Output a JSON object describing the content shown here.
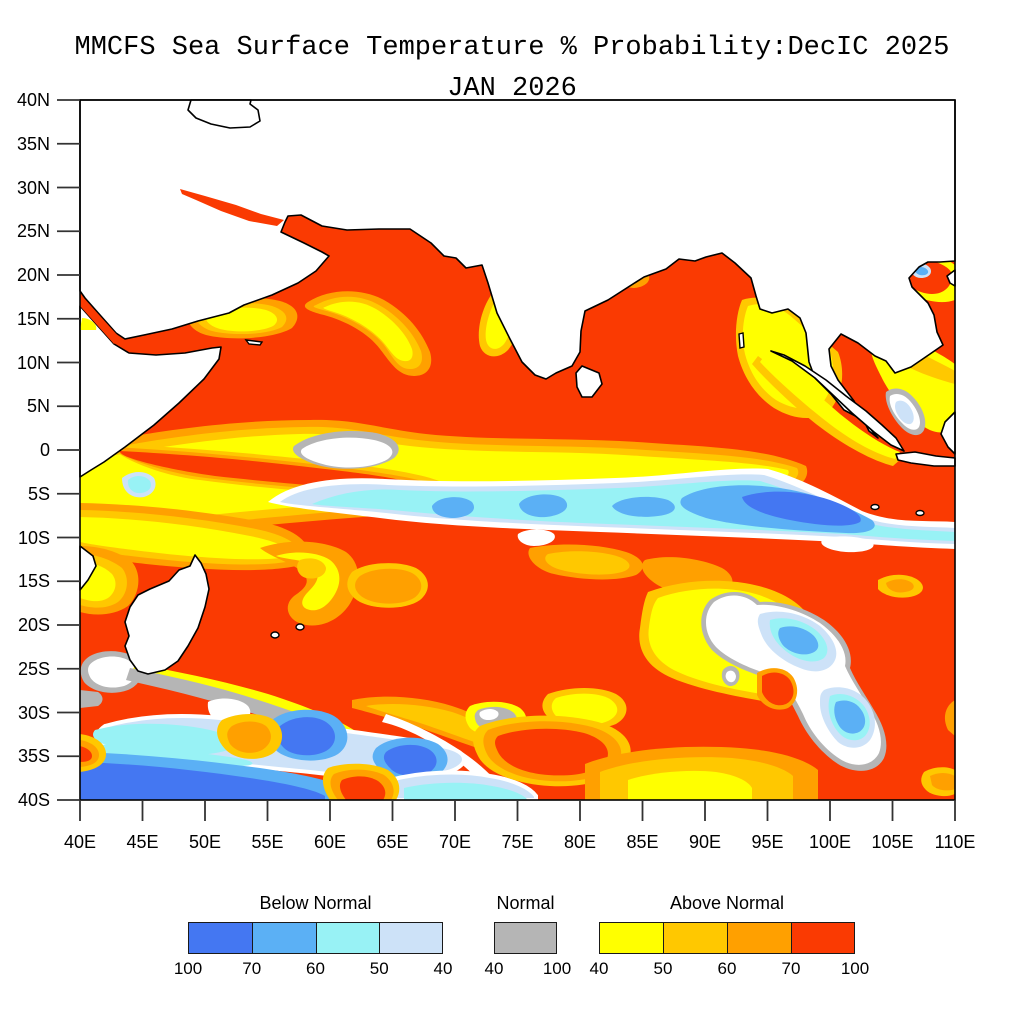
{
  "title": "MMCFS Sea Surface Temperature % Probability:DecIC 2025",
  "subtitle": "JAN 2026",
  "axes": {
    "x": {
      "labels": [
        "40E",
        "45E",
        "50E",
        "55E",
        "60E",
        "65E",
        "70E",
        "75E",
        "80E",
        "85E",
        "90E",
        "95E",
        "100E",
        "105E",
        "110E"
      ]
    },
    "y": {
      "labels": [
        "40N",
        "35N",
        "30N",
        "25N",
        "20N",
        "15N",
        "10N",
        "5N",
        "0",
        "5S",
        "10S",
        "15S",
        "20S",
        "25S",
        "30S",
        "35S",
        "40S"
      ]
    }
  },
  "legend": {
    "groups": [
      {
        "title": "Below Normal",
        "colors": [
          "royal",
          "medium",
          "cyan",
          "pale"
        ],
        "ticks": [
          "100",
          "70",
          "60",
          "50",
          "40"
        ]
      },
      {
        "title": "Normal",
        "colors": [
          "gray"
        ],
        "ticks": [
          "40",
          "100"
        ]
      },
      {
        "title": "Above Normal",
        "colors": [
          "yellow",
          "gold",
          "orange",
          "red"
        ],
        "ticks": [
          "40",
          "50",
          "60",
          "70",
          "100"
        ]
      }
    ]
  },
  "palette": {
    "royal": "#4477F2",
    "medium": "#5BB0F5",
    "cyan": "#98F2F5",
    "pale": "#CDE2F8",
    "gray": "#B5B5B5",
    "yellow": "#FFFF00",
    "gold": "#FFC800",
    "orange": "#FFA000",
    "red": "#FA3A02"
  },
  "chart_data": {
    "type": "heatmap",
    "title": "MMCFS Sea Surface Temperature % Probability:DecIC 2025",
    "subtitle": "JAN 2026",
    "x_axis": {
      "kind": "longitude",
      "range_deg_east": [
        40,
        110
      ],
      "tick_step_deg": 5
    },
    "y_axis": {
      "kind": "latitude",
      "range_deg": [
        -40,
        40
      ],
      "tick_step_deg": 5
    },
    "grid": false,
    "legend_position": "bottom",
    "categories": [
      {
        "name": "Below Normal",
        "bins_percent": [
          [
            100,
            70
          ],
          [
            70,
            60
          ],
          [
            60,
            50
          ],
          [
            50,
            40
          ]
        ],
        "colors": [
          "royal",
          "medium",
          "cyan",
          "pale"
        ]
      },
      {
        "name": "Normal",
        "bins_percent": [
          [
            40,
            100
          ]
        ],
        "colors": [
          "gray"
        ]
      },
      {
        "name": "Above Normal",
        "bins_percent": [
          [
            40,
            50
          ],
          [
            50,
            60
          ],
          [
            60,
            70
          ],
          [
            70,
            100
          ]
        ],
        "colors": [
          "yellow",
          "gold",
          "orange",
          "red"
        ]
      }
    ],
    "features": [
      {
        "region": "Arabian Sea / Bay of Bengal / most of Indian Ocean",
        "value": "Above Normal 70-100%"
      },
      {
        "region": "Band 40-57E, 0-7S and 8-12S",
        "value": "Above Normal 40-60% (yellow bands split by 70-100% tongue)"
      },
      {
        "region": "Equatorial band 57-110E, 4-9S widening near Sumatra",
        "value": "Below Normal 40-70%, core 70-100% at 93-103E"
      },
      {
        "region": "55-62E and 58-65E near equator",
        "value": "Normal patches (gray/white)"
      },
      {
        "region": "86-97E, 17-27S",
        "value": "Above Normal 40-50% around Below Normal pocket 93-104E with 60-70% cores"
      },
      {
        "region": "Southwest 42-70E, 30-40S",
        "value": "Below Normal 40-100%, strongest 70-100% at 40-58E, 36-40S"
      },
      {
        "region": "73-82E, 31-38S",
        "value": "Above Normal 70-100% blob"
      },
      {
        "region": "Gulf of Tonkin 105-110E, 17-22N",
        "value": "Above Normal 70-100% with small Below Normal spot"
      }
    ]
  }
}
